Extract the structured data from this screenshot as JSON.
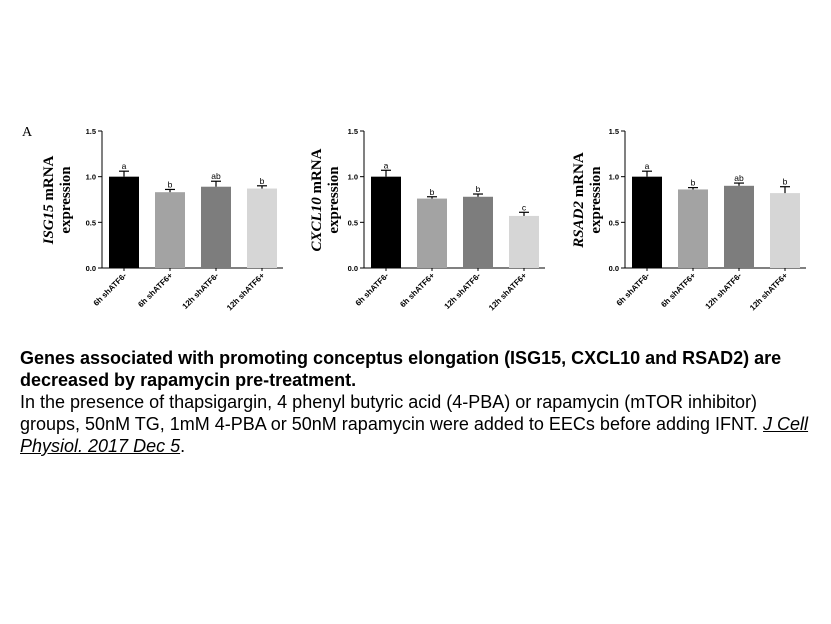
{
  "panel_label": "A",
  "caption": {
    "title": "Genes associated with promoting conceptus elongation (ISG15, CXCL10 and RSAD2) are decreased by rapamycin pre-treatment.",
    "body": "In the presence of thapsigargin, 4 phenyl butyric acid (4-PBA) or rapamycin (mTOR inhibitor) groups, 50nM TG, 1mM 4-PBA or 50nM rapamycin were added to EECs before adding IFNT.",
    "citation": "J Cell Physiol. 2017 Dec 5",
    "end": "."
  },
  "chart_data": [
    {
      "type": "bar",
      "ylabel_gene": "ISG15",
      "ylabel_rest": " mRNA",
      "ylabel_line2": "expression",
      "categories": [
        "6h shATF6-",
        "6h shATF6+",
        "12h shATF6-",
        "12h shATF6+"
      ],
      "values": [
        1.0,
        0.83,
        0.89,
        0.87
      ],
      "errors": [
        0.06,
        0.03,
        0.06,
        0.03
      ],
      "labels": [
        "a",
        "b",
        "ab",
        "b"
      ],
      "colors": [
        "#000000",
        "#a3a3a3",
        "#7d7d7d",
        "#d6d6d6"
      ],
      "yticks": [
        "0.0",
        "0.5",
        "1.0",
        "1.5"
      ],
      "ylim": [
        0,
        1.5
      ]
    },
    {
      "type": "bar",
      "ylabel_gene": "CXCL10",
      "ylabel_rest": " mRNA",
      "ylabel_line2": "expression",
      "categories": [
        "6h shATF6-",
        "6h shATF6+",
        "12h shATF6-",
        "12h shATF6+"
      ],
      "values": [
        1.0,
        0.76,
        0.78,
        0.57
      ],
      "errors": [
        0.07,
        0.02,
        0.03,
        0.04
      ],
      "labels": [
        "a",
        "b",
        "b",
        "c"
      ],
      "colors": [
        "#000000",
        "#a3a3a3",
        "#7d7d7d",
        "#d6d6d6"
      ],
      "yticks": [
        "0.0",
        "0.5",
        "1.0",
        "1.5"
      ],
      "ylim": [
        0,
        1.5
      ]
    },
    {
      "type": "bar",
      "ylabel_gene": "RSAD2",
      "ylabel_rest": " mRNA",
      "ylabel_line2": "expression",
      "categories": [
        "6h shATF6-",
        "6h shATF6+",
        "12h shATF6-",
        "12h shATF6+"
      ],
      "values": [
        1.0,
        0.86,
        0.9,
        0.82
      ],
      "errors": [
        0.06,
        0.02,
        0.03,
        0.07
      ],
      "labels": [
        "a",
        "b",
        "ab",
        "b"
      ],
      "colors": [
        "#000000",
        "#a3a3a3",
        "#7d7d7d",
        "#d6d6d6"
      ],
      "yticks": [
        "0.0",
        "0.5",
        "1.0",
        "1.5"
      ],
      "ylim": [
        0,
        1.5
      ]
    }
  ]
}
